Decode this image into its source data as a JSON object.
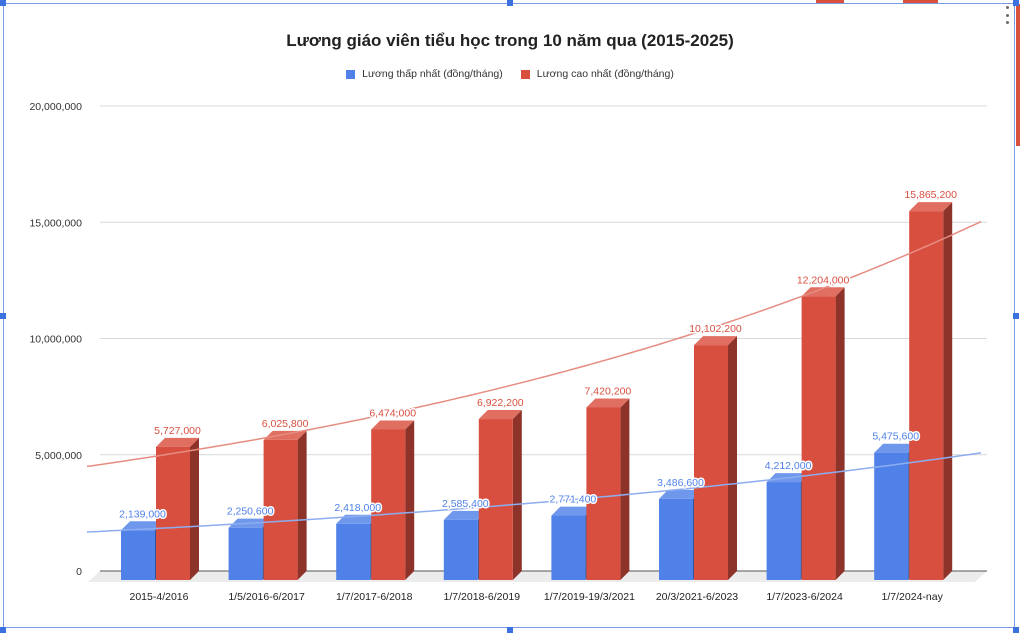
{
  "chart_data": {
    "type": "bar",
    "title": "Lương giáo viên tiểu học trong 10 năm qua (2015-2025)",
    "xlabel": "",
    "ylabel": "",
    "ylim": [
      0,
      20000000
    ],
    "yticks": [
      0,
      5000000,
      10000000,
      15000000,
      20000000
    ],
    "ytick_labels": [
      "0",
      "5,000,000",
      "10,000,000",
      "15,000,000",
      "20,000,000"
    ],
    "grid": true,
    "legend_position": "top",
    "style": "3d-column",
    "categories": [
      "2015-4/2016",
      "1/5/2016-6/2017",
      "1/7/2017-6/2018",
      "1/7/2018-6/2019",
      "1/7/2019-19/3/2021",
      "20/3/2021-6/2023",
      "1/7/2023-6/2024",
      "1/7/2024-nay"
    ],
    "series": [
      {
        "name": "Lương thấp nhất (đồng/tháng)",
        "color": "#4f81e8",
        "values": [
          2139000,
          2250600,
          2418000,
          2585400,
          2771400,
          3486600,
          4212000,
          5475600
        ],
        "labels": [
          "2,139,000",
          "2,250,600",
          "2,418,000",
          "2,585,400",
          "2,771,400",
          "3,486,600",
          "4,212,000",
          "5,475,600"
        ],
        "trendline": "exponential"
      },
      {
        "name": "Lương cao nhất (đồng/tháng)",
        "color": "#d94f3f",
        "values": [
          5727000,
          6025800,
          6474000,
          6922200,
          7420200,
          10102200,
          12204000,
          15865200
        ],
        "labels": [
          "5,727,000",
          "6,025,800",
          "6,474,000",
          "6,922,200",
          "7,420,200",
          "10,102,200",
          "12,204,000",
          "15,865,200"
        ],
        "trendline": "exponential"
      }
    ]
  },
  "ui": {
    "menu_icon": "kebab-menu-icon"
  }
}
